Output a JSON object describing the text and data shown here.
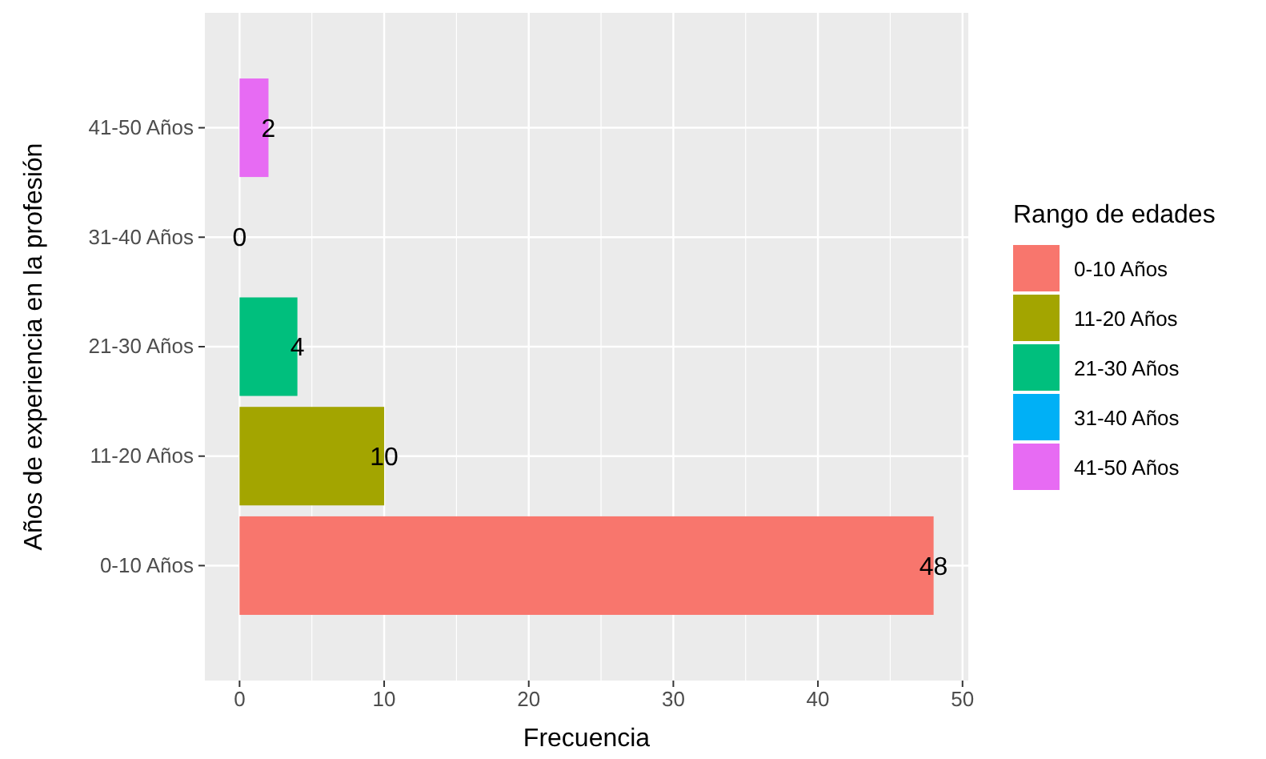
{
  "chart_data": {
    "type": "bar",
    "orientation": "horizontal",
    "xlabel": "Frecuencia",
    "ylabel": "Años de experiencia en la profesión",
    "legend_title": "Rango de edades",
    "categories": [
      "41-50 Años",
      "31-40 Años",
      "21-30 Años",
      "11-20 Años",
      "0-10 Años"
    ],
    "series": [
      {
        "name": "0-10 Años",
        "color": "#f8766d",
        "values": [
          null,
          null,
          null,
          null,
          48
        ]
      },
      {
        "name": "11-20 Años",
        "color": "#a3a500",
        "values": [
          null,
          null,
          null,
          10,
          null
        ]
      },
      {
        "name": "21-30 Años",
        "color": "#00bf7d",
        "values": [
          null,
          null,
          4,
          null,
          null
        ]
      },
      {
        "name": "31-40 Años",
        "color": "#00b0f6",
        "values": [
          null,
          0,
          null,
          null,
          null
        ]
      },
      {
        "name": "41-50 Años",
        "color": "#e76bf3",
        "values": [
          2,
          null,
          null,
          null,
          null
        ]
      }
    ],
    "xlim": [
      -2.4,
      50.4
    ],
    "xticks": [
      0,
      10,
      20,
      30,
      40,
      50
    ],
    "grid": true,
    "legend": "right",
    "data_labels": true
  }
}
